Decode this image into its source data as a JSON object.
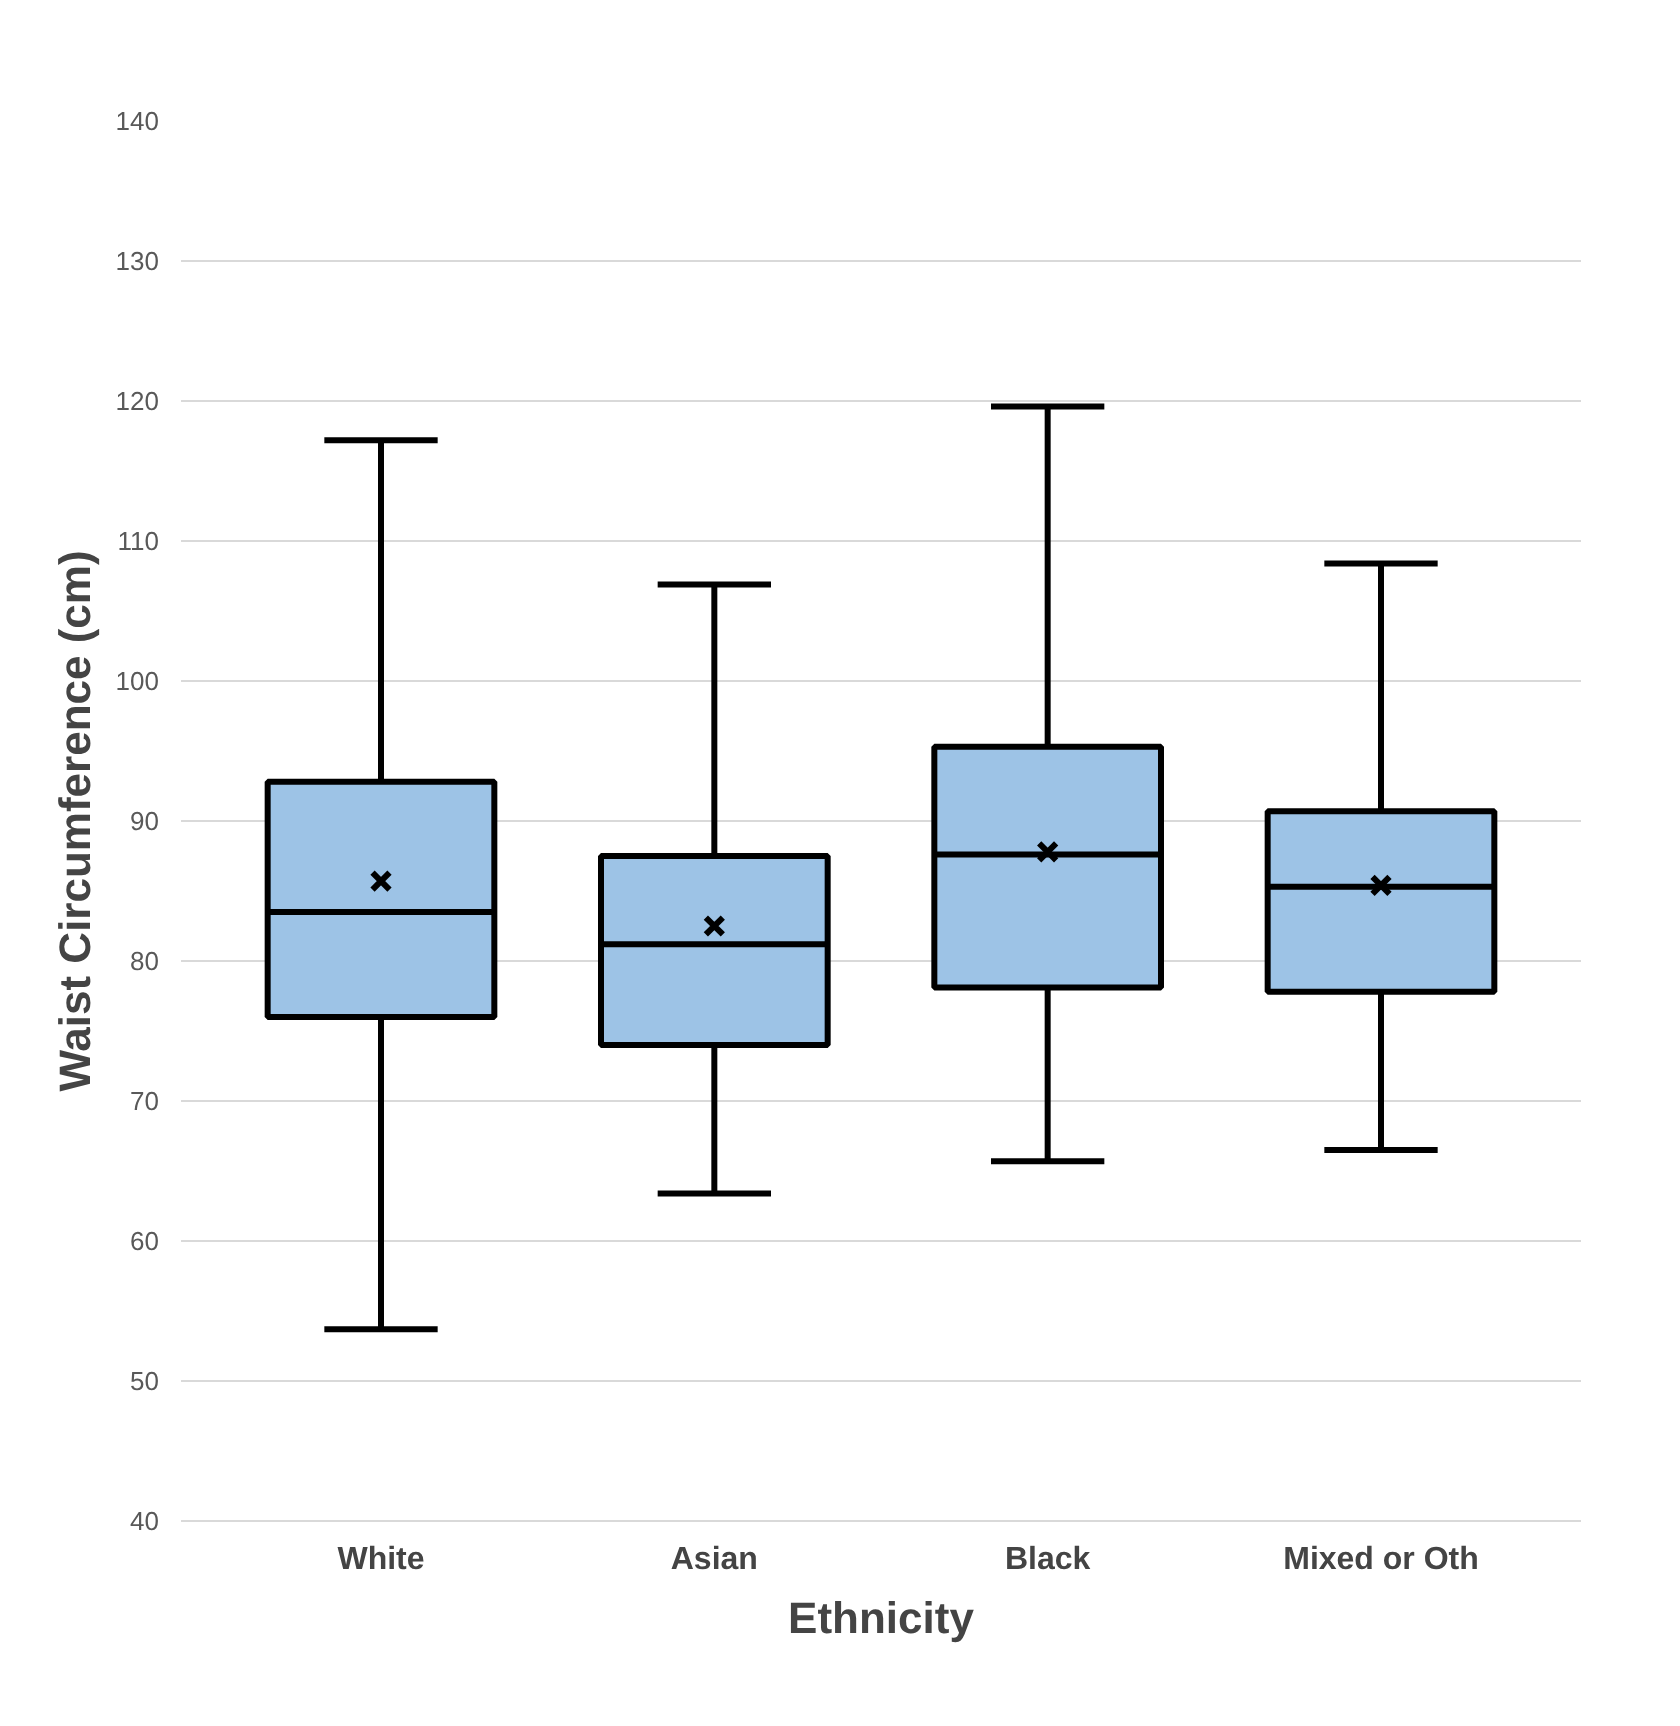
{
  "chart_data": {
    "type": "box",
    "xlabel": "Ethnicity",
    "ylabel": "Waist Circumference (cm)",
    "categories": [
      "White",
      "Asian",
      "Black",
      "Mixed or Oth"
    ],
    "color": "#9dc3e6",
    "boxes": [
      {
        "low": 53.7,
        "q1": 76.0,
        "median": 83.5,
        "q3": 92.8,
        "high": 117.2,
        "mean": 85.7
      },
      {
        "low": 63.4,
        "q1": 74.0,
        "median": 81.2,
        "q3": 87.5,
        "high": 106.9,
        "mean": 82.5
      },
      {
        "low": 65.7,
        "q1": 78.1,
        "median": 87.6,
        "q3": 95.3,
        "high": 119.6,
        "mean": 87.8
      },
      {
        "low": 66.5,
        "q1": 77.8,
        "median": 85.3,
        "q3": 90.7,
        "high": 108.4,
        "mean": 85.4
      }
    ],
    "ylim": [
      40,
      140
    ],
    "yticks": [
      40,
      50,
      60,
      70,
      80,
      90,
      100,
      110,
      120,
      130,
      140
    ],
    "grid": "y",
    "marker": "cross"
  }
}
